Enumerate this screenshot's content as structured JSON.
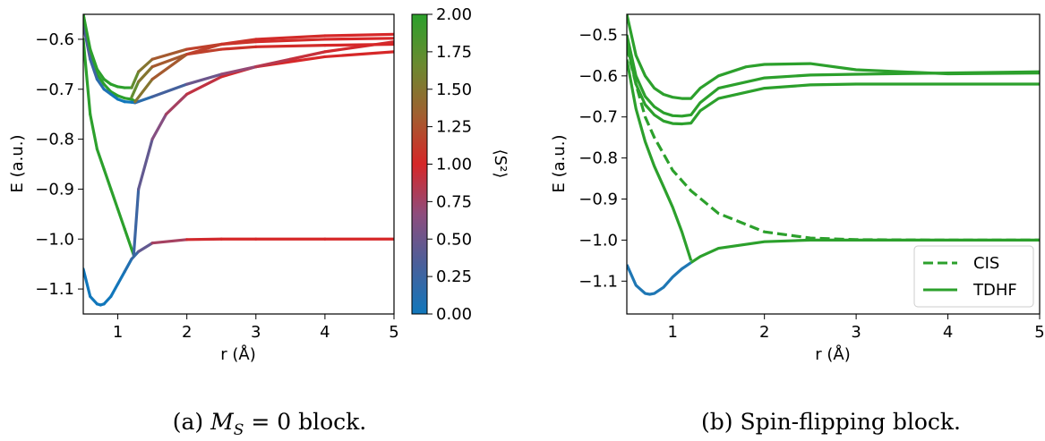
{
  "colors": {
    "green": "#2ca02c",
    "blue": "#1f77b4",
    "cbar_stops": [
      "#1177bb",
      "#4a5f9a",
      "#8e4d7d",
      "#d62728",
      "#a06030",
      "#6a8a30",
      "#2ca02c"
    ]
  },
  "chart_data": [
    {
      "type": "line",
      "caption": "(a) M_S = 0 block.",
      "caption_prefix": "(a) ",
      "caption_math": "M",
      "caption_sub": "S",
      "caption_rest": " = 0 block.",
      "xlabel": "r (Å)",
      "ylabel": "E (a.u.)",
      "xlim": [
        0.5,
        5
      ],
      "ylim": [
        -1.15,
        -0.55
      ],
      "xticks": [
        1,
        2,
        3,
        4,
        5
      ],
      "yticks": [
        -0.6,
        -0.7,
        -0.8,
        -0.9,
        -1.0,
        -1.1
      ],
      "ytick_labels": [
        "−0.6",
        "−0.7",
        "−0.8",
        "−0.9",
        "−1.0",
        "−1.1"
      ],
      "colorbar": {
        "label": "⟨S²⟩",
        "range": [
          0,
          2
        ],
        "ticks": [
          "0.00",
          "0.25",
          "0.50",
          "0.75",
          "1.00",
          "1.25",
          "1.50",
          "1.75",
          "2.00"
        ],
        "tick_values": [
          0,
          0.25,
          0.5,
          0.75,
          1.0,
          1.25,
          1.5,
          1.75,
          2.0
        ]
      },
      "series": [
        {
          "x": [
            0.5,
            0.6,
            0.7,
            0.75,
            0.8,
            0.9,
            1.0,
            1.1,
            1.2,
            1.3,
            1.5,
            2.0,
            2.5,
            3.0,
            4.0,
            5.0
          ],
          "y": [
            -1.06,
            -1.115,
            -1.13,
            -1.132,
            -1.13,
            -1.115,
            -1.09,
            -1.065,
            -1.04,
            -1.025,
            -1.008,
            -1.001,
            -1.0,
            -1.0,
            -1.0,
            -1.0
          ],
          "s2": [
            0,
            0,
            0,
            0,
            0,
            0,
            0,
            0.05,
            0.15,
            0.3,
            0.6,
            0.95,
            1.0,
            1.0,
            1.0,
            1.0
          ]
        },
        {
          "x": [
            0.5,
            0.6,
            0.7,
            0.8,
            0.9,
            1.0,
            1.1,
            1.2,
            1.23
          ],
          "y": [
            -0.6,
            -0.75,
            -0.82,
            -0.86,
            -0.9,
            -0.94,
            -0.98,
            -1.02,
            -1.032
          ],
          "s2": [
            2,
            2,
            2,
            2,
            2,
            2,
            2,
            2,
            2
          ]
        },
        {
          "x": [
            1.23,
            1.3,
            1.5,
            1.7,
            2.0,
            2.5,
            3.0,
            4.0,
            5.0
          ],
          "y": [
            -1.032,
            -0.9,
            -0.8,
            -0.75,
            -0.71,
            -0.675,
            -0.655,
            -0.635,
            -0.625
          ],
          "s2": [
            0.15,
            0.35,
            0.55,
            0.7,
            0.85,
            0.95,
            1.0,
            1.0,
            1.0
          ]
        },
        {
          "x": [
            0.5,
            0.6,
            0.7,
            0.8,
            0.9,
            1.0,
            1.1,
            1.2,
            1.25
          ],
          "y": [
            -0.55,
            -0.63,
            -0.67,
            -0.69,
            -0.705,
            -0.713,
            -0.718,
            -0.72,
            -0.724
          ],
          "s2": [
            2,
            2,
            2,
            2,
            2,
            2,
            2,
            2,
            2
          ]
        },
        {
          "x": [
            0.5,
            0.6,
            0.7,
            0.8,
            0.9,
            1.0,
            1.1,
            1.2,
            1.25
          ],
          "y": [
            -0.57,
            -0.64,
            -0.68,
            -0.7,
            -0.71,
            -0.72,
            -0.725,
            -0.726,
            -0.727
          ],
          "s2": [
            0.4,
            0.3,
            0.2,
            0.1,
            0.05,
            0.0,
            0.0,
            0.0,
            0.0
          ]
        },
        {
          "x": [
            1.25,
            1.5,
            2.0,
            2.5,
            3.0,
            3.5,
            4.0,
            5.0
          ],
          "y": [
            -0.727,
            -0.715,
            -0.69,
            -0.67,
            -0.655,
            -0.64,
            -0.625,
            -0.605
          ],
          "s2": [
            0.1,
            0.2,
            0.4,
            0.6,
            0.8,
            0.9,
            0.95,
            1.0
          ]
        },
        {
          "x": [
            0.5,
            0.6,
            0.7,
            0.8,
            0.9,
            1.0,
            1.1,
            1.2
          ],
          "y": [
            -0.55,
            -0.62,
            -0.66,
            -0.68,
            -0.69,
            -0.695,
            -0.697,
            -0.697
          ],
          "s2": [
            2,
            2,
            2,
            2,
            2,
            2,
            2,
            2
          ]
        },
        {
          "x": [
            1.2,
            1.3,
            1.5,
            2.0,
            2.5,
            3.0,
            4.0,
            5.0
          ],
          "y": [
            -0.697,
            -0.665,
            -0.64,
            -0.62,
            -0.61,
            -0.605,
            -0.6,
            -0.598
          ],
          "s2": [
            1.8,
            1.6,
            1.4,
            1.2,
            1.1,
            1.05,
            1.0,
            1.0
          ]
        },
        {
          "x": [
            1.2,
            1.3,
            1.5,
            2.0,
            2.5,
            3.0,
            4.0,
            5.0
          ],
          "y": [
            -0.716,
            -0.685,
            -0.655,
            -0.63,
            -0.62,
            -0.615,
            -0.612,
            -0.61
          ],
          "s2": [
            1.8,
            1.6,
            1.4,
            1.2,
            1.1,
            1.05,
            1.0,
            1.0
          ]
        },
        {
          "x": [
            1.25,
            1.5,
            2.0,
            2.5,
            3.0,
            4.0,
            5.0
          ],
          "y": [
            -0.725,
            -0.68,
            -0.63,
            -0.61,
            -0.6,
            -0.593,
            -0.59
          ],
          "s2": [
            1.6,
            1.4,
            1.2,
            1.1,
            1.05,
            1.0,
            1.0
          ]
        }
      ]
    },
    {
      "type": "line",
      "caption": "(b) Spin-flipping block.",
      "xlabel": "r (Å)",
      "ylabel": "E (a.u.)",
      "xlim": [
        0.5,
        5
      ],
      "ylim": [
        -1.18,
        -0.45
      ],
      "xticks": [
        1,
        2,
        3,
        4,
        5
      ],
      "yticks": [
        -0.5,
        -0.6,
        -0.7,
        -0.8,
        -0.9,
        -1.0,
        -1.1
      ],
      "ytick_labels": [
        "−0.5",
        "−0.6",
        "−0.7",
        "−0.8",
        "−0.9",
        "−1.0",
        "−1.1"
      ],
      "legend": {
        "position": "lower right",
        "entries": [
          "CIS",
          "TDHF"
        ]
      },
      "series": [
        {
          "name": "CIS",
          "dashed": true,
          "color": "green",
          "x": [
            0.5,
            0.6,
            0.7,
            0.8,
            0.9,
            1.0,
            1.2,
            1.5,
            2.0,
            2.5,
            3.0,
            4.0,
            5.0
          ],
          "y": [
            -0.53,
            -0.62,
            -0.7,
            -0.75,
            -0.79,
            -0.83,
            -0.88,
            -0.935,
            -0.98,
            -0.995,
            -0.999,
            -1.0,
            -1.0
          ]
        },
        {
          "name": "TDHF",
          "color": "green",
          "x": [
            0.5,
            0.6,
            0.7,
            0.8,
            0.9,
            1.0,
            1.1,
            1.2
          ],
          "y": [
            -0.56,
            -0.68,
            -0.76,
            -0.82,
            -0.87,
            -0.92,
            -0.98,
            -1.05
          ]
        },
        {
          "color": "blue",
          "x": [
            0.5,
            0.6,
            0.7,
            0.75,
            0.8,
            0.9,
            1.0,
            1.1,
            1.2
          ],
          "y": [
            -1.06,
            -1.11,
            -1.13,
            -1.132,
            -1.13,
            -1.115,
            -1.09,
            -1.07,
            -1.055
          ]
        },
        {
          "color": "green",
          "x": [
            1.2,
            1.3,
            1.5,
            2.0,
            2.5,
            3.0,
            4.0,
            5.0
          ],
          "y": [
            -1.055,
            -1.04,
            -1.02,
            -1.004,
            -1.0,
            -1.0,
            -1.0,
            -1.0
          ]
        },
        {
          "color": "green",
          "x": [
            0.5,
            0.6,
            0.7,
            0.8,
            0.9,
            1.0,
            1.1,
            1.2,
            1.3,
            1.5,
            1.8,
            2.0,
            2.5,
            3.0,
            4.0,
            5.0
          ],
          "y": [
            -0.45,
            -0.55,
            -0.6,
            -0.63,
            -0.645,
            -0.652,
            -0.655,
            -0.655,
            -0.63,
            -0.6,
            -0.578,
            -0.572,
            -0.57,
            -0.585,
            -0.595,
            -0.593
          ]
        },
        {
          "color": "green",
          "x": [
            0.5,
            0.6,
            0.7,
            0.8,
            0.9,
            1.0,
            1.1,
            1.2,
            1.3,
            1.5,
            2.0,
            2.5,
            3.0,
            4.0,
            5.0
          ],
          "y": [
            -0.5,
            -0.6,
            -0.65,
            -0.675,
            -0.69,
            -0.697,
            -0.698,
            -0.695,
            -0.665,
            -0.63,
            -0.605,
            -0.598,
            -0.596,
            -0.593,
            -0.59
          ]
        },
        {
          "color": "green",
          "x": [
            0.5,
            0.6,
            0.7,
            0.8,
            0.9,
            1.0,
            1.1,
            1.2,
            1.3,
            1.5,
            2.0,
            2.5,
            3.0,
            4.0,
            5.0
          ],
          "y": [
            -0.52,
            -0.62,
            -0.67,
            -0.695,
            -0.71,
            -0.716,
            -0.717,
            -0.715,
            -0.685,
            -0.655,
            -0.63,
            -0.622,
            -0.62,
            -0.62,
            -0.62
          ]
        }
      ]
    }
  ]
}
